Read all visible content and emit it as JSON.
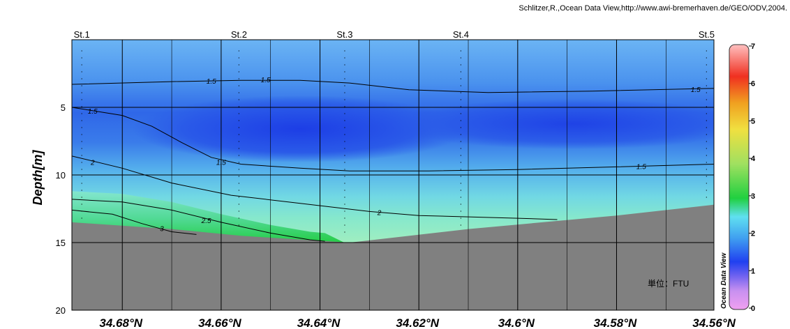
{
  "credit": "Schlitzer,R.,Ocean Data View,http://www.awi-bremerhaven.de/GEO/ODV,2004.",
  "chart_data": {
    "type": "heatmap",
    "ylabel": "Depth[m]",
    "xlabel": "",
    "unit_label": "単位：FTU",
    "watermark": "Ocean Data View",
    "x_range": [
      34.6902,
      34.5603
    ],
    "y_range": [
      20,
      0
    ],
    "x_ticks": [
      {
        "value": 34.68,
        "label": "34.68°N"
      },
      {
        "value": 34.66,
        "label": "34.66°N"
      },
      {
        "value": 34.64,
        "label": "34.64°N"
      },
      {
        "value": 34.62,
        "label": "34.62°N"
      },
      {
        "value": 34.6,
        "label": "34.6°N"
      },
      {
        "value": 34.58,
        "label": "34.58°N"
      },
      {
        "value": 34.56,
        "label": "34.56°N"
      }
    ],
    "y_ticks": [
      5,
      10,
      15,
      20
    ],
    "grid": true,
    "stations": [
      {
        "name": "St.1",
        "lat": 34.6882
      },
      {
        "name": "St.2",
        "lat": 34.6564
      },
      {
        "name": "St.3",
        "lat": 34.635
      },
      {
        "name": "St.4",
        "lat": 34.6115
      },
      {
        "name": "St.5",
        "lat": 34.5618
      }
    ],
    "bottom_depth": [
      [
        34.6902,
        13.5
      ],
      [
        34.67,
        14.0
      ],
      [
        34.656,
        14.5
      ],
      [
        34.634,
        15.0
      ],
      [
        34.61,
        14.0
      ],
      [
        34.58,
        13.0
      ],
      [
        34.5603,
        12.2
      ]
    ],
    "contours": [
      {
        "level": "1.5",
        "points": [
          [
            34.6902,
            3.3
          ],
          [
            34.67,
            3.1
          ],
          [
            34.656,
            3.0
          ],
          [
            34.644,
            3.0
          ],
          [
            34.634,
            3.2
          ],
          [
            34.622,
            3.7
          ],
          [
            34.606,
            3.9
          ],
          [
            34.585,
            3.8
          ],
          [
            34.5603,
            3.6
          ]
        ],
        "labels": [
          [
            34.662,
            3.1
          ],
          [
            34.651,
            3.0
          ],
          [
            34.564,
            3.7
          ]
        ]
      },
      {
        "level": "1.5",
        "points": [
          [
            34.6902,
            5.0
          ],
          [
            34.68,
            5.6
          ],
          [
            34.674,
            6.4
          ],
          [
            34.668,
            7.6
          ],
          [
            34.662,
            8.7
          ],
          [
            34.656,
            9.2
          ],
          [
            34.644,
            9.5
          ],
          [
            34.634,
            9.7
          ],
          [
            34.618,
            9.7
          ],
          [
            34.6,
            9.6
          ],
          [
            34.58,
            9.4
          ],
          [
            34.5603,
            9.2
          ]
        ],
        "labels": [
          [
            34.686,
            5.3
          ],
          [
            34.66,
            9.1
          ],
          [
            34.575,
            9.4
          ]
        ]
      },
      {
        "level": "2",
        "points": [
          [
            34.6902,
            8.6
          ],
          [
            34.68,
            9.5
          ],
          [
            34.67,
            10.6
          ],
          [
            34.658,
            11.5
          ],
          [
            34.644,
            12.1
          ],
          [
            34.63,
            12.7
          ],
          [
            34.62,
            13.0
          ],
          [
            34.6,
            13.2
          ],
          [
            34.592,
            13.3
          ]
        ],
        "labels": [
          [
            34.686,
            9.1
          ],
          [
            34.628,
            12.8
          ]
        ]
      },
      {
        "level": "2.5",
        "points": [
          [
            34.6902,
            11.8
          ],
          [
            34.68,
            12.0
          ],
          [
            34.67,
            12.6
          ],
          [
            34.66,
            13.5
          ],
          [
            34.65,
            14.3
          ],
          [
            34.642,
            14.8
          ],
          [
            34.639,
            14.9
          ]
        ],
        "labels": [
          [
            34.663,
            13.4
          ]
        ]
      },
      {
        "level": "3",
        "points": [
          [
            34.6902,
            12.6
          ],
          [
            34.682,
            12.9
          ],
          [
            34.676,
            13.6
          ],
          [
            34.67,
            14.2
          ],
          [
            34.665,
            14.4
          ]
        ],
        "labels": [
          [
            34.672,
            14.0
          ]
        ]
      }
    ],
    "colorbar": {
      "min": 0,
      "max": 7,
      "ticks": [
        0,
        1,
        2,
        3,
        4,
        5,
        6,
        7
      ]
    }
  }
}
